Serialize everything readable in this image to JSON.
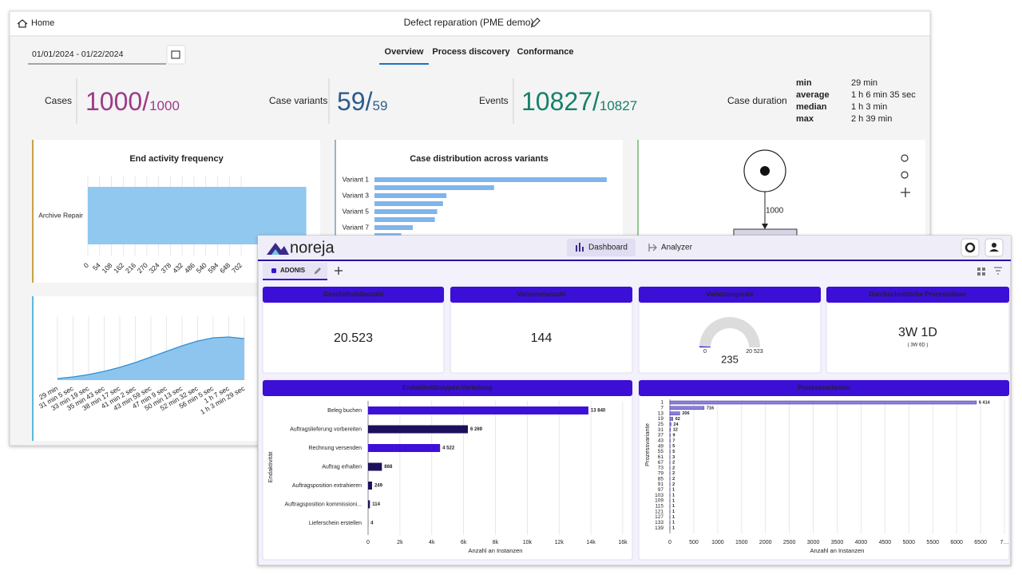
{
  "back_window": {
    "header": {
      "home": "Home",
      "title": "Defect reparation (PME demo)"
    },
    "date_range": "01/01/2024 - 01/22/2024",
    "tabs": [
      "Overview",
      "Process discovery",
      "Conformance"
    ],
    "kpis": [
      {
        "label": "Cases",
        "value": "1000/",
        "total": "1000",
        "color": "#9c3b8a"
      },
      {
        "label": "Case variants",
        "value": "59/",
        "total": "59",
        "color": "#2e5b8e"
      },
      {
        "label": "Events",
        "value": "10827/",
        "total": "10827",
        "color": "#16806b"
      }
    ],
    "case_duration": {
      "label": "Case duration",
      "rows": [
        [
          "min",
          "29 min"
        ],
        [
          "average",
          "1 h 6 min 35 sec"
        ],
        [
          "median",
          "1 h 3 min"
        ],
        [
          "max",
          "2 h 39 min"
        ]
      ]
    },
    "process_model": {
      "arc_label": "1000"
    }
  },
  "front_window": {
    "brand": "noreja",
    "nav": [
      "Dashboard",
      "Analyzer"
    ],
    "tab": "ADONIS",
    "kpi_cards": [
      {
        "title": "Geschäftsfallanzahl",
        "value": "20.523"
      },
      {
        "title": "Variantenanzahl",
        "value": "144"
      },
      {
        "title": "Durchschnittliche Prozessdauer",
        "value": "3W 1D",
        "sub": "( 3W 6D )"
      }
    ]
  },
  "chart_data": [
    {
      "type": "hbar",
      "title": "End activity frequency",
      "categories": [
        "Archive Repair"
      ],
      "values": [
        1000
      ],
      "color": "#90c8f0",
      "xlim": [
        0,
        1060
      ],
      "xticks": [
        0,
        54,
        108,
        162,
        216,
        270,
        324,
        378,
        432,
        486,
        540,
        594,
        648,
        702
      ],
      "grid": true
    },
    {
      "type": "hbar",
      "title": "Case distribution across variants",
      "categories": [
        "Variant 1",
        null,
        "Variant 3",
        null,
        "Variant 5",
        null,
        "Variant 7",
        null
      ],
      "values": [
        200,
        103,
        62,
        59,
        54,
        52,
        33,
        23
      ],
      "color": "#7fb5ec",
      "xlim": [
        0,
        220
      ],
      "grid": false
    },
    {
      "type": "area",
      "categories": [
        "29 min",
        "31 min 5 sec",
        "33 min 19 sec",
        "35 min 43 sec",
        "38 min 17 sec",
        "41 min 2 sec",
        "43 min 59 sec",
        "47 min 9 sec",
        "50 min 13 sec",
        "52 min 32 sec",
        "56 min 5 sec",
        "1 h 7 sec",
        "1 h 3 min 29 sec"
      ],
      "values": [
        2,
        4,
        7,
        11,
        16,
        22,
        29,
        36,
        43,
        49,
        53,
        54,
        52
      ],
      "color": "#8ec5ee",
      "line_color": "#2f8fd6",
      "ylim": [
        0,
        60
      ],
      "grid": true
    },
    {
      "type": "gauge",
      "title": "Verletzungsrate",
      "value": 235,
      "ylim": [
        0,
        20523
      ],
      "yticks": [
        0,
        {
          "value": 20523,
          "label": "20 523"
        }
      ],
      "color": "#3b0fd6",
      "track_color": "#dcdcdc"
    },
    {
      "type": "hbar",
      "title": "Endaktivitätstypen-Verteilung",
      "categories": [
        "Beleg buchen",
        "Auftragslieferung vorbereiten",
        "Rechnung versenden",
        "Auftrag erhalten",
        "Auftragsposition extrahieren",
        "Auftragsposition kommissioni...",
        "Lieferschein erstellen"
      ],
      "values": [
        13840,
        6269,
        4522,
        868,
        249,
        114,
        4
      ],
      "value_labels": [
        "13 840",
        "6 269",
        "4 522",
        "868",
        "249",
        "114",
        "4"
      ],
      "colors": [
        "#3d10d9",
        "#1e0f5c",
        "#3d10d9",
        "#1e0f5c",
        "#1e0f5c",
        "#1e0f5c",
        "#1e0f5c"
      ],
      "xlim": [
        0,
        16000
      ],
      "xticks": [
        0,
        {
          "value": 2000,
          "label": "2k"
        },
        {
          "value": 4000,
          "label": "4k"
        },
        {
          "value": 6000,
          "label": "6k"
        },
        {
          "value": 8000,
          "label": "8k"
        },
        {
          "value": 10000,
          "label": "10k"
        },
        {
          "value": 12000,
          "label": "12k"
        },
        {
          "value": 14000,
          "label": "14k"
        },
        {
          "value": 16000,
          "label": "16k"
        }
      ],
      "xlabel": "Anzahl an Instanzen",
      "ylabel": "Endaktivität",
      "grid": true
    },
    {
      "type": "hbar",
      "title": "Prozessvarianten",
      "categories": [
        "1",
        "7",
        "13",
        "19",
        "25",
        "31",
        "37",
        "43",
        "49",
        "55",
        "61",
        "67",
        "73",
        "79",
        "85",
        "91",
        "97",
        "103",
        "109",
        "115",
        "121",
        "127",
        "133",
        "139"
      ],
      "values": [
        6414,
        716,
        206,
        62,
        24,
        12,
        9,
        7,
        5,
        5,
        3,
        2,
        2,
        2,
        2,
        2,
        1,
        1,
        1,
        1,
        1,
        1,
        1,
        1
      ],
      "value_labels": [
        "6 414",
        "716",
        "206",
        "62",
        "24",
        "12",
        "9",
        "7",
        "5",
        "5",
        "3",
        "2",
        "2",
        "2",
        "2",
        "2",
        "1",
        "1",
        "1",
        "1",
        "1",
        "1",
        "1",
        "1"
      ],
      "color": "#8b80dc",
      "xlim": [
        0,
        7000
      ],
      "xticks": [
        0,
        500,
        1000,
        1500,
        2000,
        2500,
        3000,
        3500,
        4000,
        4500,
        5000,
        5500,
        6000,
        6500,
        {
          "value": 7000,
          "label": "7…"
        }
      ],
      "xlabel": "Anzahl an Instanzen",
      "ylabel": "Prozessvariante",
      "grid": true
    }
  ]
}
